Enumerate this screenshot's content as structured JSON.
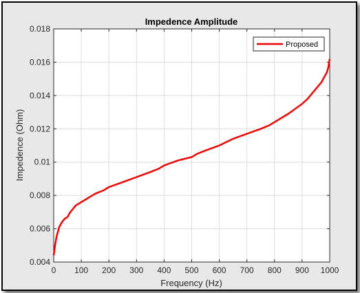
{
  "chart_data": {
    "type": "line",
    "title": "Impedence Amplitude",
    "xlabel": "Frequency (Hz)",
    "ylabel": "Impedence (Ohm)",
    "xlim": [
      0,
      1000
    ],
    "ylim": [
      0.004,
      0.018
    ],
    "xticks": [
      0,
      100,
      200,
      300,
      400,
      500,
      600,
      700,
      800,
      900,
      1000
    ],
    "xtick_labels": [
      "0",
      "100",
      "200",
      "300",
      "400",
      "500",
      "600",
      "700",
      "800",
      "900",
      "1000"
    ],
    "yticks": [
      0.004,
      0.006,
      0.008,
      0.01,
      0.012,
      0.014,
      0.016,
      0.018
    ],
    "ytick_labels": [
      "0.004",
      "0.006",
      "0.008",
      "0.01",
      "0.012",
      "0.014",
      "0.016",
      "0.018"
    ],
    "grid": true,
    "legend_position": "top-right",
    "series": [
      {
        "name": "Proposed",
        "color": "#ee0000",
        "x": [
          0,
          5,
          10,
          20,
          30,
          40,
          50,
          60,
          70,
          80,
          100,
          120,
          150,
          180,
          200,
          250,
          300,
          350,
          380,
          400,
          450,
          500,
          520,
          550,
          600,
          650,
          700,
          750,
          780,
          800,
          850,
          900,
          920,
          940,
          960,
          970,
          980,
          990,
          995,
          1000
        ],
        "y": [
          0.0044,
          0.005,
          0.0055,
          0.0061,
          0.0064,
          0.0066,
          0.0067,
          0.007,
          0.0072,
          0.0074,
          0.0076,
          0.0078,
          0.0081,
          0.0083,
          0.0085,
          0.0088,
          0.0091,
          0.0094,
          0.0096,
          0.0098,
          0.0101,
          0.0103,
          0.0105,
          0.0107,
          0.011,
          0.0114,
          0.0117,
          0.012,
          0.0122,
          0.0124,
          0.0129,
          0.0135,
          0.0138,
          0.0142,
          0.0146,
          0.0148,
          0.0151,
          0.0154,
          0.0157,
          0.0162
        ]
      }
    ]
  }
}
